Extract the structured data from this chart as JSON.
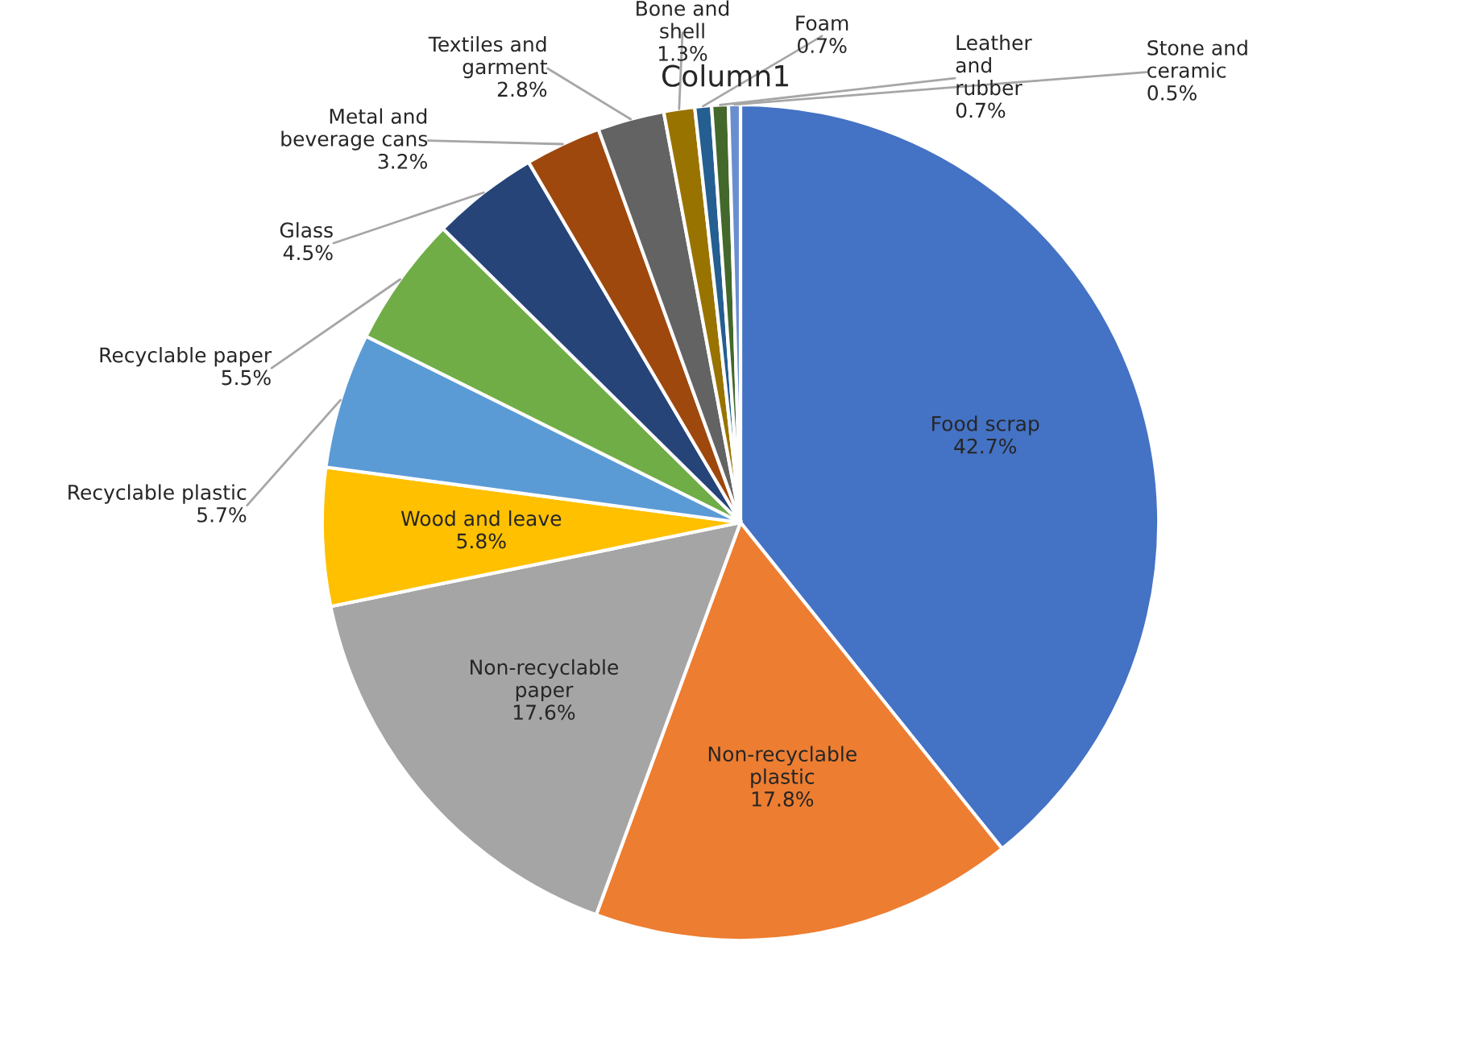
{
  "chart_data": {
    "type": "pie",
    "title": "Column1",
    "categories": [
      "Food scrap",
      "Non-recyclable\nplastic",
      "Non-recyclable\npaper",
      "Wood and leave",
      "Recyclable plastic",
      "Recyclable paper",
      "Glass",
      "Metal and\nbeverage cans",
      "Textiles and\ngarment",
      "Bone and\nshell",
      "Foam",
      "Leather\nand\nrubber",
      "Stone and\nceramic"
    ],
    "values": [
      42.7,
      17.8,
      17.6,
      5.8,
      5.7,
      5.5,
      4.5,
      3.2,
      2.8,
      1.3,
      0.7,
      0.7,
      0.5
    ],
    "value_labels": [
      "42.7%",
      "17.8%",
      "17.6%",
      "5.8%",
      "5.7%",
      "5.5%",
      "4.5%",
      "3.2%",
      "2.8%",
      "1.3%",
      "0.7%",
      "0.7%",
      "0.5%"
    ],
    "colors": [
      "#4472c4",
      "#ed7d31",
      "#a5a5a5",
      "#ffc000",
      "#5b9bd5",
      "#70ad47",
      "#264478",
      "#9e480e",
      "#636363",
      "#997300",
      "#255e91",
      "#43682b",
      "#698ed0"
    ],
    "legend": false
  }
}
